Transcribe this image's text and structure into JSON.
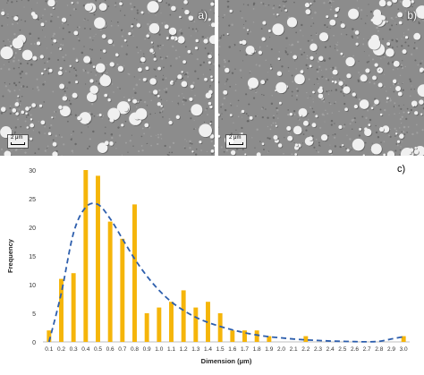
{
  "panels": {
    "a": {
      "label": "a)",
      "scale_text": "2 μm"
    },
    "b": {
      "label": "b)",
      "scale_text": "2 μm"
    }
  },
  "chart_label": "c)",
  "chart_data": {
    "type": "bar",
    "xlabel": "Dimension (μm)",
    "ylabel": "Frequency",
    "ylim": [
      0,
      30
    ],
    "yticks": [
      0,
      5,
      10,
      15,
      20,
      25,
      30
    ],
    "grid": false,
    "categories": [
      "0.1",
      "0.2",
      "0.3",
      "0.4",
      "0.5",
      "0.6",
      "0.7",
      "0.8",
      "0.9",
      "1.0",
      "1.1",
      "1.2",
      "1.3",
      "1.4",
      "1.5",
      "1.6",
      "1.7",
      "1.8",
      "1.9",
      "2.0",
      "2.1",
      "2.2",
      "2.3",
      "2.4",
      "2.5",
      "2.6",
      "2.7",
      "2.8",
      "2.9",
      "3.0"
    ],
    "series": [
      {
        "type": "bar",
        "values": [
          2,
          11,
          12,
          30,
          29,
          21,
          18,
          24,
          5,
          6,
          7,
          9,
          6,
          7,
          5,
          2,
          2,
          2,
          1,
          0,
          0,
          1,
          0,
          0,
          0,
          0,
          0,
          0,
          0,
          1
        ],
        "color": "#f5b50a"
      },
      {
        "type": "line",
        "style": "dashed",
        "values": [
          0,
          8.5,
          19,
          23.5,
          24,
          21.5,
          18,
          14.5,
          11.5,
          9,
          7,
          5.5,
          4.3,
          3.4,
          2.7,
          2.1,
          1.6,
          1.2,
          0.9,
          0.7,
          0.5,
          0.35,
          0.25,
          0.15,
          0.1,
          0.05,
          0.02,
          0.1,
          0.5,
          0.9
        ],
        "color": "#2e5fad"
      }
    ]
  }
}
